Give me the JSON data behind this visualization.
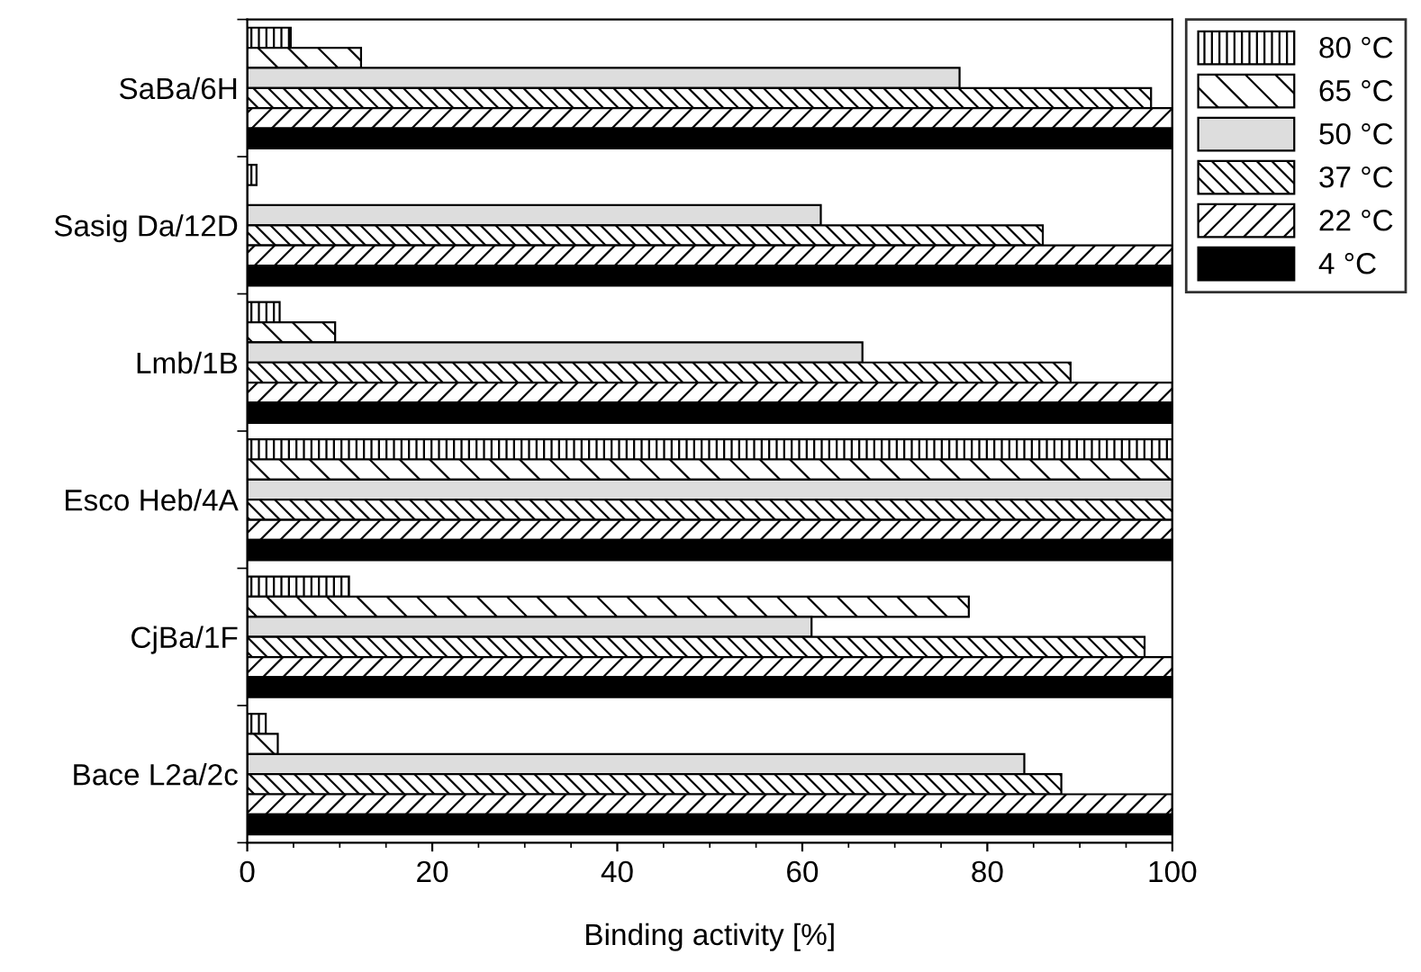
{
  "chart_data": {
    "type": "bar",
    "orientation": "horizontal",
    "xlabel": "Binding activity [%]",
    "categories": [
      "SaBa/6H",
      "Sasig Da/12D",
      "Lmb/1B",
      "Esco Heb/4A",
      "CjBa/1F",
      "Bace L2a/2c"
    ],
    "series": [
      {
        "name": "80 °C",
        "color": "#000000",
        "values": [
          4.7,
          1,
          3.5,
          100,
          11,
          2
        ]
      },
      {
        "name": "65 °C",
        "color": "#000000",
        "values": [
          12.3,
          0,
          9.5,
          100,
          78,
          3.3
        ]
      },
      {
        "name": "50 °C",
        "color": "#dddddd",
        "values": [
          77,
          62,
          66.5,
          100,
          61,
          84
        ]
      },
      {
        "name": "37 °C",
        "color": "#000000",
        "values": [
          97.7,
          86,
          89,
          100,
          97,
          88
        ]
      },
      {
        "name": "22 °C",
        "color": "#000000",
        "values": [
          100,
          100,
          100,
          100,
          100,
          100
        ]
      },
      {
        "name": "4 °C",
        "color": "#000000",
        "values": [
          100,
          100,
          100,
          100,
          100,
          100
        ]
      }
    ],
    "xlim": [
      0,
      100
    ],
    "xticks": [
      0,
      20,
      40,
      60,
      80,
      100
    ],
    "grid": false,
    "legend": "top right"
  }
}
